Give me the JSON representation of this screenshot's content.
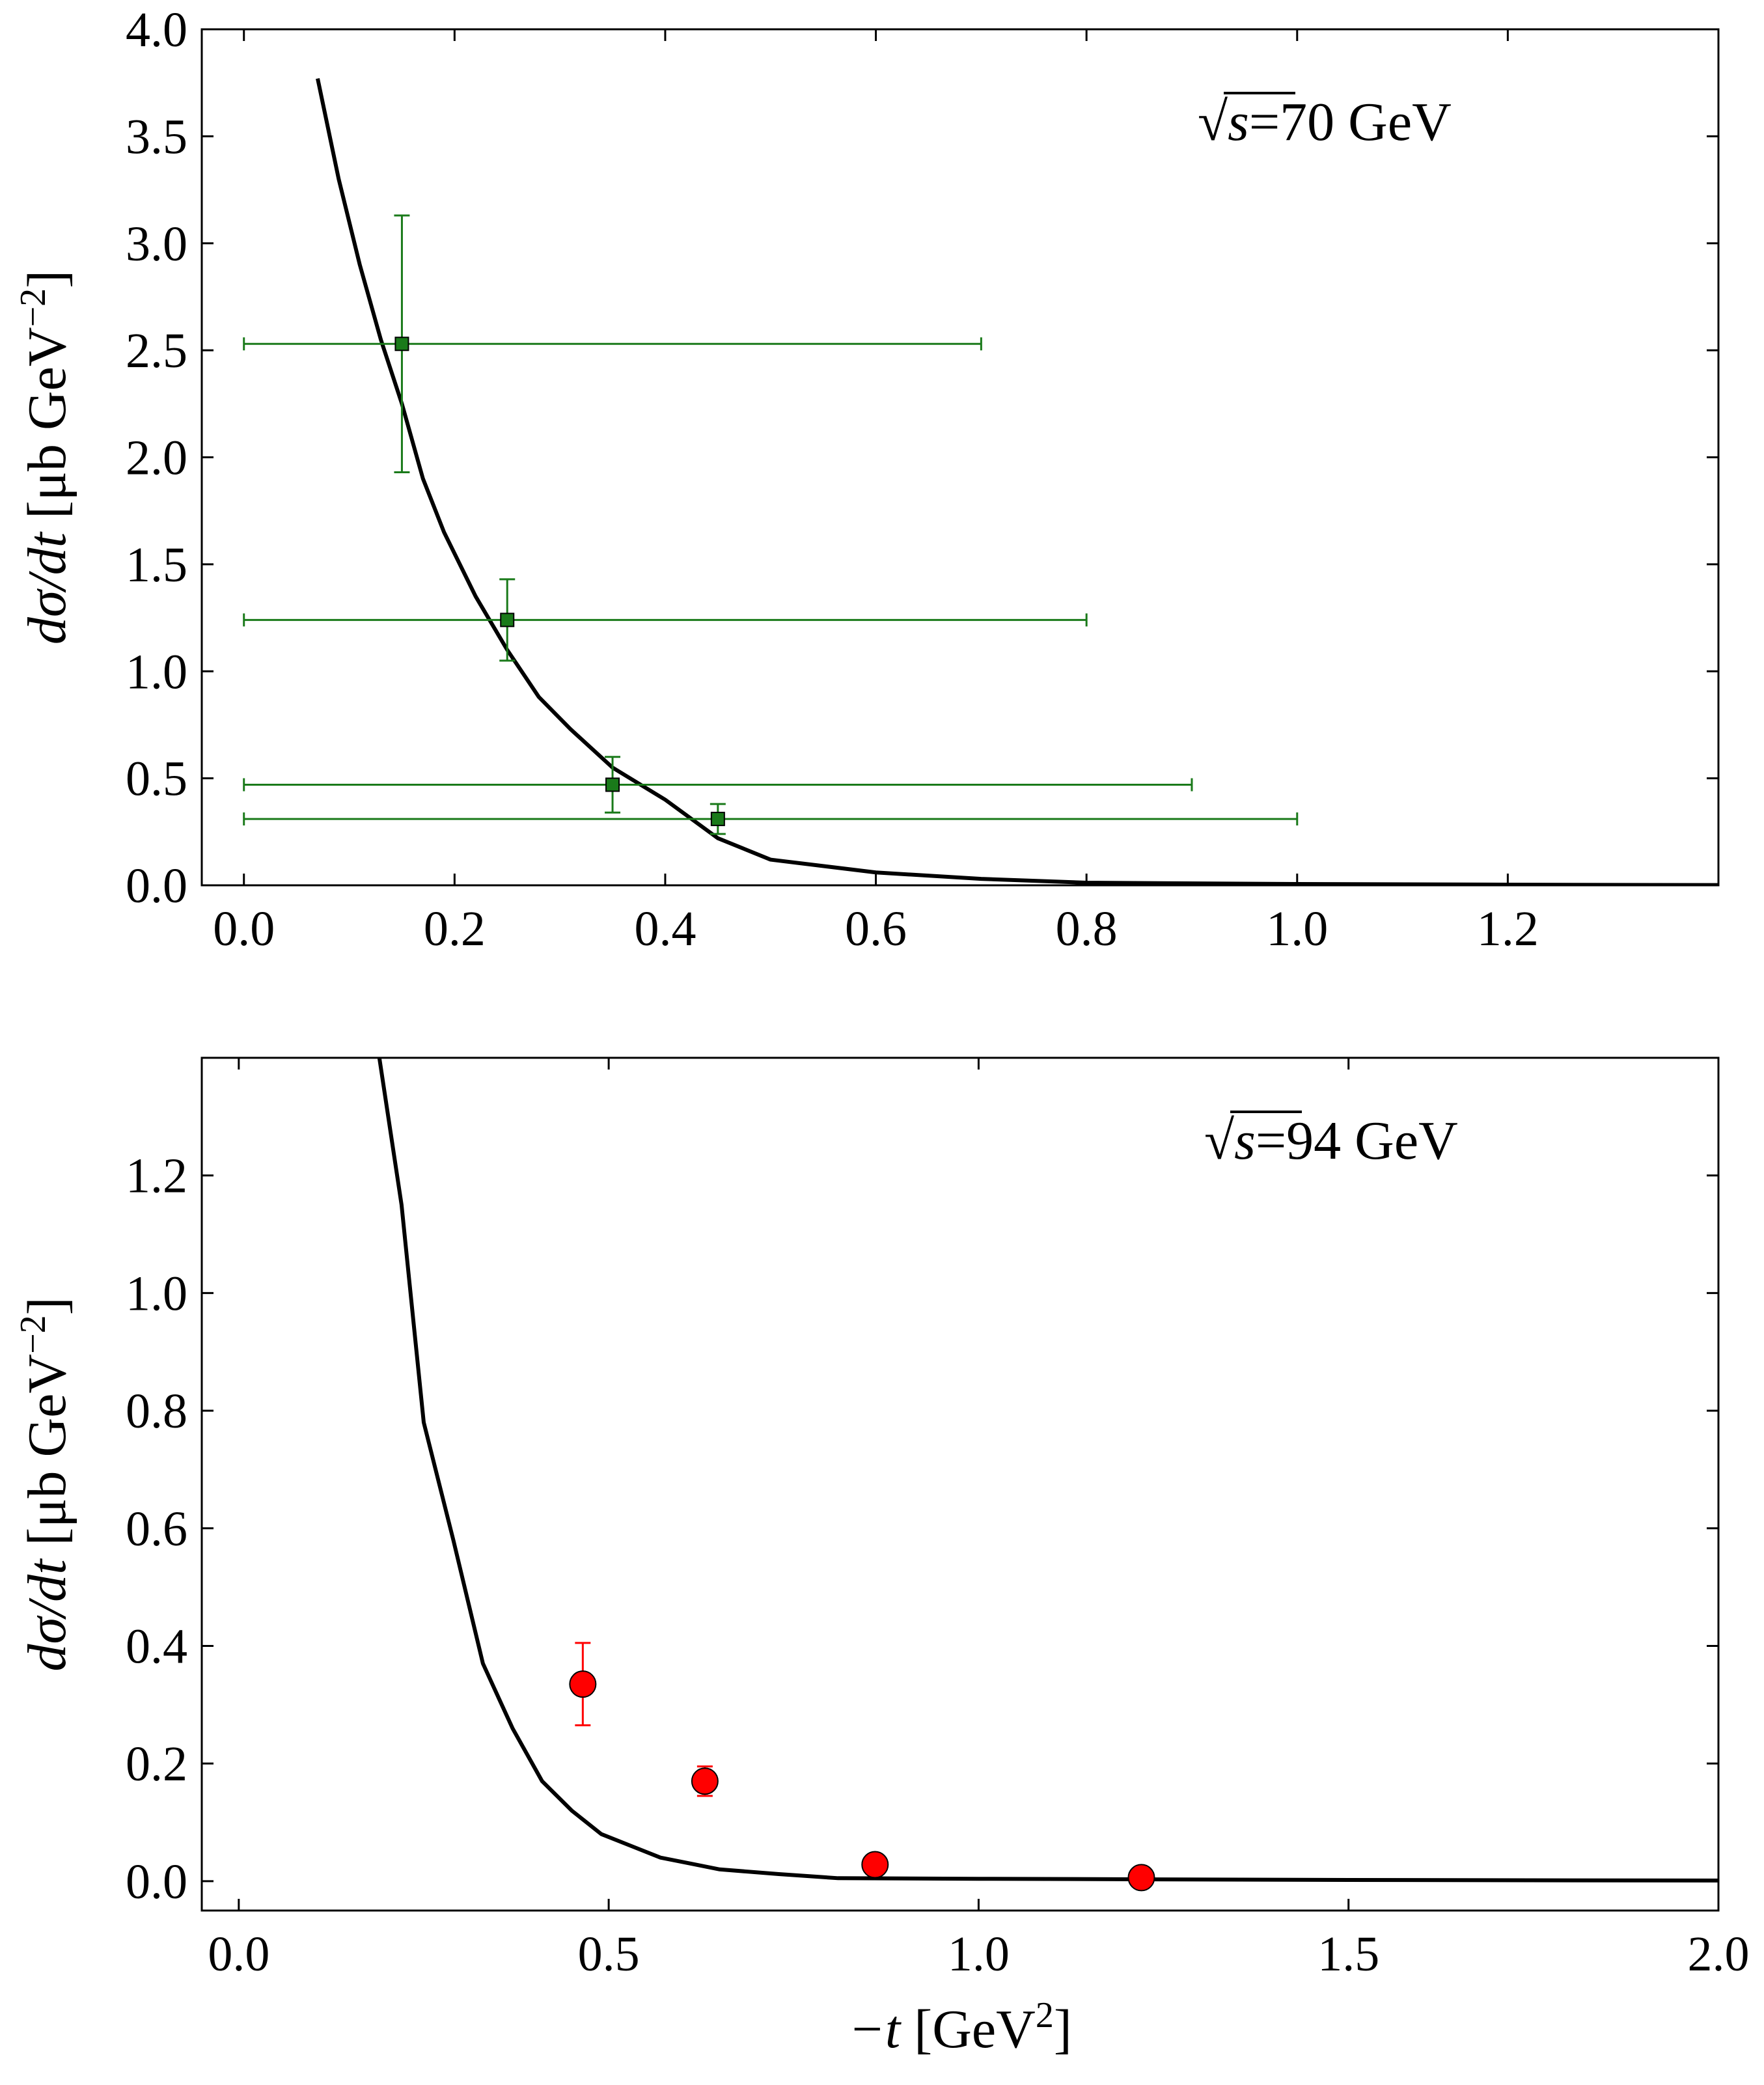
{
  "chart_data": [
    {
      "type": "line+scatter",
      "annotation": {
        "prefix": "√",
        "var": "s",
        "suffix": "=70 GeV"
      },
      "xlabel": "",
      "ylabel": {
        "main": "dσ/dt [μb GeV",
        "exp": "−2",
        "close": "]"
      },
      "xlim": [
        -0.04,
        1.4
      ],
      "ylim": [
        0.0,
        4.0
      ],
      "xticks": [
        "0.0",
        "0.2",
        "0.4",
        "0.6",
        "0.8",
        "1.0",
        "1.2"
      ],
      "xtick_values": [
        0.0,
        0.2,
        0.4,
        0.6,
        0.8,
        1.0,
        1.2
      ],
      "yticks": [
        "0.0",
        "0.5",
        "1.0",
        "1.5",
        "2.0",
        "2.5",
        "3.0",
        "3.5",
        "4.0"
      ],
      "ytick_values": [
        0.0,
        0.5,
        1.0,
        1.5,
        2.0,
        2.5,
        3.0,
        3.5,
        4.0
      ],
      "grid": false,
      "series": [
        {
          "kind": "line",
          "color": "#000000",
          "x": [
            0.07,
            0.09,
            0.11,
            0.13,
            0.15,
            0.17,
            0.19,
            0.22,
            0.25,
            0.28,
            0.31,
            0.35,
            0.4,
            0.45,
            0.5,
            0.6,
            0.7,
            0.8,
            1.0,
            1.2,
            1.4
          ],
          "y": [
            3.77,
            3.3,
            2.9,
            2.55,
            2.25,
            1.9,
            1.65,
            1.35,
            1.1,
            0.88,
            0.73,
            0.55,
            0.4,
            0.22,
            0.12,
            0.06,
            0.03,
            0.012,
            0.006,
            0.003,
            0.001
          ]
        },
        {
          "kind": "errorbar",
          "marker": "square",
          "color": "#1a7a1a",
          "x": [
            0.15,
            0.25,
            0.35,
            0.45
          ],
          "y": [
            2.53,
            1.24,
            0.47,
            0.31
          ],
          "xerr_low": [
            0.15,
            0.25,
            0.35,
            0.45
          ],
          "xerr_high": [
            0.55,
            0.55,
            0.55,
            0.55
          ],
          "yerr": [
            0.6,
            0.19,
            0.13,
            0.07
          ]
        }
      ]
    },
    {
      "type": "line+scatter",
      "annotation": {
        "prefix": "√",
        "var": "s",
        "suffix": "=94 GeV"
      },
      "xlabel": {
        "main": "−t [GeV",
        "exp": "2",
        "close": "]"
      },
      "ylabel": {
        "main": "dσ/dt [μb GeV",
        "exp": "−2",
        "close": "]"
      },
      "xlim": [
        -0.05,
        2.0
      ],
      "ylim": [
        -0.05,
        1.4
      ],
      "xticks": [
        "0.0",
        "0.5",
        "1.0",
        "1.5",
        "2.0"
      ],
      "xtick_values": [
        0.0,
        0.5,
        1.0,
        1.5,
        2.0
      ],
      "yticks": [
        "0.0",
        "0.2",
        "0.4",
        "0.6",
        "0.8",
        "1.0",
        "1.2"
      ],
      "ytick_values": [
        0.0,
        0.2,
        0.4,
        0.6,
        0.8,
        1.0,
        1.2
      ],
      "grid": false,
      "series": [
        {
          "kind": "line",
          "color": "#000000",
          "x": [
            0.19,
            0.22,
            0.25,
            0.29,
            0.33,
            0.37,
            0.41,
            0.45,
            0.49,
            0.53,
            0.57,
            0.61,
            0.65,
            0.73,
            0.81,
            1.0,
            1.5,
            2.0
          ],
          "y": [
            1.4,
            1.15,
            0.78,
            0.58,
            0.37,
            0.26,
            0.17,
            0.12,
            0.08,
            0.06,
            0.04,
            0.03,
            0.02,
            0.012,
            0.005,
            0.004,
            0.002,
            0.001
          ]
        },
        {
          "kind": "errorbar",
          "marker": "circle",
          "color": "#ff0000",
          "x": [
            0.465,
            0.63,
            0.86,
            1.22
          ],
          "y": [
            0.335,
            0.17,
            0.028,
            0.006
          ],
          "xerr_low": [
            0,
            0,
            0,
            0
          ],
          "xerr_high": [
            0,
            0,
            0,
            0
          ],
          "yerr": [
            0.07,
            0.025,
            0.0,
            0.0
          ]
        }
      ]
    }
  ]
}
